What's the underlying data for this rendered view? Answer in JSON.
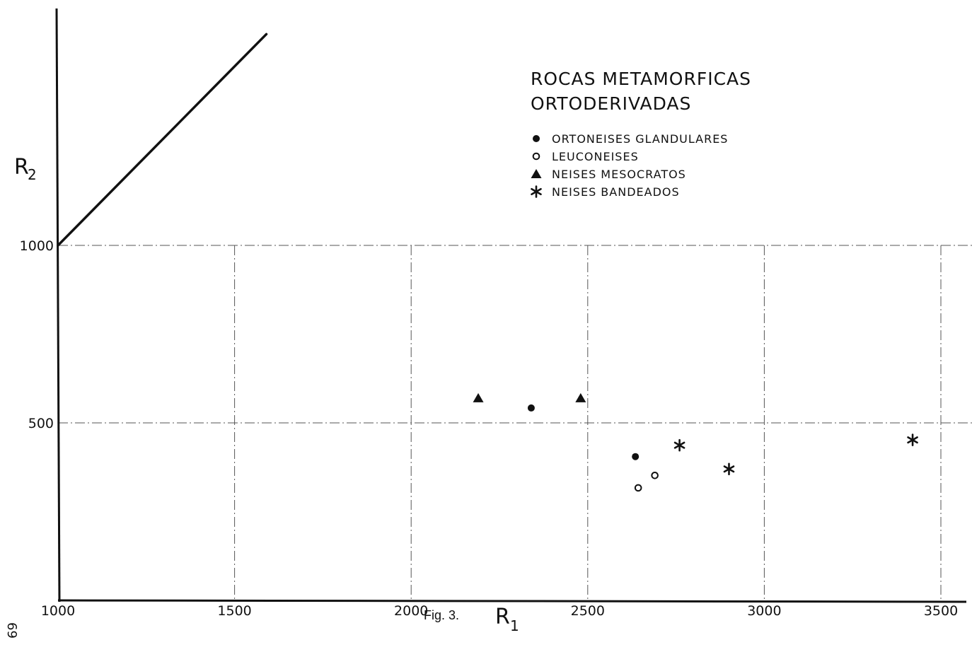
{
  "caption": "Fig. 3.",
  "page_number": "69",
  "chart_data": {
    "type": "scatter",
    "title_lines": [
      "ROCAS METAMORFICAS",
      "ORTODERIVADAS"
    ],
    "xlabel": {
      "main": "R",
      "sub": "1"
    },
    "ylabel": {
      "main": "R",
      "sub": "2"
    },
    "xlim": [
      1000,
      3600
    ],
    "ylim": [
      0,
      1600
    ],
    "xticks": [
      {
        "value": 1000,
        "label": "1000"
      },
      {
        "value": 1500,
        "label": "1500"
      },
      {
        "value": 2000,
        "label": "2000"
      },
      {
        "value": 2500,
        "label": "2500"
      },
      {
        "value": 3000,
        "label": "3000"
      },
      {
        "value": 3500,
        "label": "3500"
      }
    ],
    "yticks": [
      {
        "value": 500,
        "label": "500"
      },
      {
        "value": 1000,
        "label": "1000"
      }
    ],
    "grid": true,
    "legend_position": "top-right",
    "reference_line": {
      "x": [
        1000,
        1590
      ],
      "y": [
        1000,
        1595
      ]
    },
    "series": [
      {
        "name": "ORTONEISES GLANDULARES",
        "marker": "filled-circle",
        "points": [
          {
            "x": 2340,
            "y": 542
          },
          {
            "x": 2635,
            "y": 405
          }
        ]
      },
      {
        "name": "LEUCONEISES",
        "marker": "open-circle",
        "points": [
          {
            "x": 2643,
            "y": 317
          },
          {
            "x": 2690,
            "y": 352
          }
        ]
      },
      {
        "name": "NEISES MESOCRATOS",
        "marker": "filled-triangle",
        "points": [
          {
            "x": 2190,
            "y": 570
          },
          {
            "x": 2480,
            "y": 570
          }
        ]
      },
      {
        "name": "NEISES BANDEADOS",
        "marker": "asterisk",
        "points": [
          {
            "x": 2760,
            "y": 437
          },
          {
            "x": 2900,
            "y": 370
          },
          {
            "x": 3420,
            "y": 452
          }
        ]
      }
    ]
  }
}
